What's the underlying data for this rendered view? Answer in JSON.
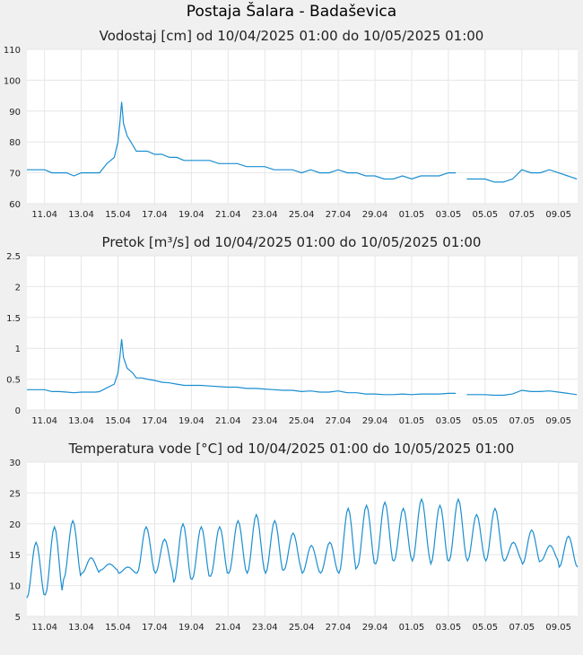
{
  "page": {
    "title": "Postaja Šalara - Badaševica"
  },
  "style": {
    "line_color": "#1a8ed0",
    "plot_bg": "#ffffff",
    "page_bg": "#f0f0f0",
    "grid_color": "#e6e6e6"
  },
  "x_ticks": [
    "11.04",
    "13.04",
    "15.04",
    "17.04",
    "19.04",
    "21.04",
    "23.04",
    "25.04",
    "27.04",
    "29.04",
    "01.05",
    "03.05",
    "05.05",
    "07.05",
    "09.05"
  ],
  "chart_data": [
    {
      "type": "line",
      "title": "Vodostaj [cm] od 10/04/2025 01:00 do 10/05/2025 01:00",
      "ylim": [
        60,
        110
      ],
      "y_ticks": [
        "60",
        "70",
        "80",
        "90",
        "100",
        "110"
      ],
      "grid": true,
      "series": [
        {
          "x": [
            10.04,
            10.5,
            11.0,
            11.4,
            11.8,
            12.2,
            12.6,
            13.0,
            13.4,
            13.8,
            14.0,
            14.4,
            14.8,
            15.0,
            15.1,
            15.2,
            15.3,
            15.5,
            15.8,
            16.0,
            16.3,
            16.6,
            17.0,
            17.4,
            17.8,
            18.2,
            18.6,
            19.0,
            19.5,
            20.0,
            20.5,
            21.0,
            21.5,
            22.0,
            22.5,
            23.0,
            23.5,
            24.0,
            24.5,
            25.0,
            25.5,
            26.0,
            26.5,
            27.0,
            27.5,
            28.0,
            28.5,
            29.0,
            29.5,
            30.0,
            30.5,
            31.0,
            31.5,
            32.0,
            32.5,
            33.0,
            33.4,
            33.6,
            34.0,
            34.5,
            35.0,
            35.5,
            36.0,
            36.5,
            37.0,
            37.5,
            38.0,
            38.5,
            39.0,
            39.5,
            40.0
          ],
          "y": [
            71,
            71,
            71,
            70,
            70,
            70,
            69,
            70,
            70,
            70,
            70,
            73,
            75,
            80,
            86,
            93,
            86,
            82,
            79,
            77,
            77,
            77,
            76,
            76,
            75,
            75,
            74,
            74,
            74,
            74,
            73,
            73,
            73,
            72,
            72,
            72,
            71,
            71,
            71,
            70,
            71,
            70,
            70,
            71,
            70,
            70,
            69,
            69,
            68,
            68,
            69,
            68,
            69,
            69,
            69,
            70,
            70,
            null,
            68,
            68,
            68,
            67,
            67,
            68,
            71,
            70,
            70,
            71,
            70,
            69,
            68
          ],
          "gaps_note": ""
        }
      ]
    },
    {
      "type": "line",
      "title": "Pretok [m³/s] od 10/04/2025 01:00 do 10/05/2025 01:00",
      "ylim": [
        0,
        2.5
      ],
      "y_ticks": [
        "0",
        "0.5",
        "1",
        "1.5",
        "2",
        "2.5"
      ],
      "grid": true,
      "series": [
        {
          "x": [
            10.04,
            10.5,
            11.0,
            11.4,
            11.8,
            12.2,
            12.6,
            13.0,
            13.4,
            13.8,
            14.0,
            14.4,
            14.8,
            15.0,
            15.1,
            15.2,
            15.3,
            15.5,
            15.8,
            16.0,
            16.3,
            16.6,
            17.0,
            17.4,
            17.8,
            18.2,
            18.6,
            19.0,
            19.5,
            20.0,
            20.5,
            21.0,
            21.5,
            22.0,
            22.5,
            23.0,
            23.5,
            24.0,
            24.5,
            25.0,
            25.5,
            26.0,
            26.5,
            27.0,
            27.5,
            28.0,
            28.5,
            29.0,
            29.5,
            30.0,
            30.5,
            31.0,
            31.5,
            32.0,
            32.5,
            33.0,
            33.4,
            33.6,
            34.0,
            34.5,
            35.0,
            35.5,
            36.0,
            36.5,
            37.0,
            37.5,
            38.0,
            38.5,
            39.0,
            39.5,
            40.0
          ],
          "y": [
            0.33,
            0.33,
            0.33,
            0.3,
            0.3,
            0.29,
            0.28,
            0.29,
            0.29,
            0.29,
            0.3,
            0.36,
            0.42,
            0.6,
            0.85,
            1.15,
            0.85,
            0.68,
            0.6,
            0.52,
            0.52,
            0.5,
            0.48,
            0.45,
            0.44,
            0.42,
            0.4,
            0.4,
            0.4,
            0.39,
            0.38,
            0.37,
            0.37,
            0.35,
            0.35,
            0.34,
            0.33,
            0.32,
            0.32,
            0.3,
            0.31,
            0.29,
            0.29,
            0.31,
            0.28,
            0.28,
            0.26,
            0.26,
            0.25,
            0.25,
            0.26,
            0.25,
            0.26,
            0.26,
            0.26,
            0.27,
            0.27,
            null,
            0.25,
            0.25,
            0.25,
            0.24,
            0.24,
            0.26,
            0.32,
            0.3,
            0.3,
            0.31,
            0.29,
            0.27,
            0.25
          ]
        }
      ]
    },
    {
      "type": "line",
      "title": "Temperatura vode [°C] od 10/04/2025 01:00 do 10/05/2025 01:00",
      "ylim": [
        5,
        30
      ],
      "y_ticks": [
        "5",
        "10",
        "15",
        "20",
        "25",
        "30"
      ],
      "grid": true,
      "series": [
        {
          "mins": [
            8,
            8.5,
            11,
            12,
            12.5,
            12,
            12,
            12,
            10.5,
            11,
            11.5,
            12,
            12,
            12,
            12.5,
            12,
            12,
            12,
            13,
            13.5,
            14,
            14,
            13.5,
            14,
            14,
            14,
            14,
            13.5,
            14,
            13,
            13
          ],
          "maxs": [
            17,
            19.5,
            20.5,
            14.5,
            13.5,
            13,
            19.5,
            17.5,
            20,
            19.5,
            19.5,
            20.5,
            21.5,
            20.5,
            18.5,
            16.5,
            17,
            22.5,
            23,
            23.5,
            22.5,
            24,
            23,
            24,
            21.5,
            22.5,
            17,
            19,
            16.5,
            18,
            17.5
          ]
        }
      ]
    }
  ]
}
